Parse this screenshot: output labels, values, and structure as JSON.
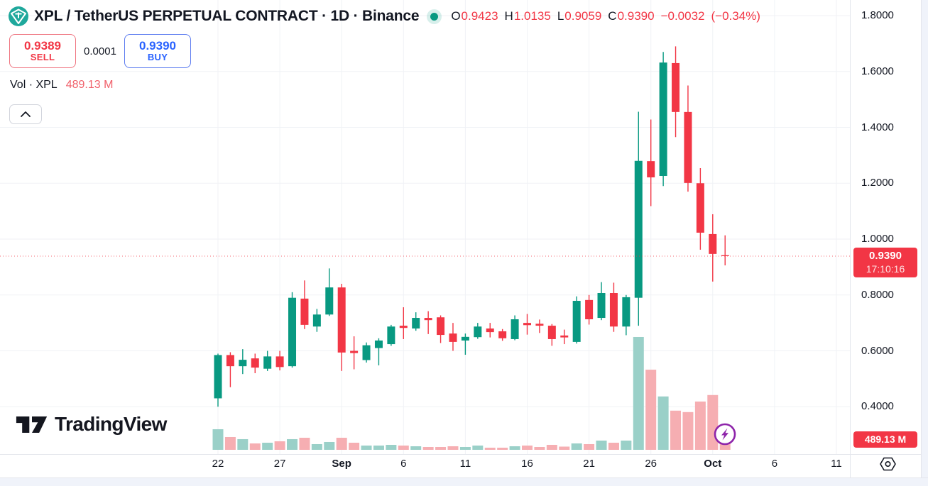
{
  "colors": {
    "up": "#089981",
    "down": "#f23645",
    "volume_up": "#9ad0c8",
    "volume_down": "#f6aeb2",
    "buy_blue": "#2962ff",
    "sell_red": "#f23645",
    "grid": "#f0f2f6",
    "axis_text": "#131722",
    "tag_red": "#f23645",
    "lightning_purple": "#8e24aa"
  },
  "header": {
    "title": "XPL / TetherUS PERPETUAL CONTRACT · 1D · Binance",
    "ohlc": {
      "o_label": "O",
      "o": "0.9423",
      "h_label": "H",
      "h": "1.0135",
      "l_label": "L",
      "l": "0.9059",
      "c_label": "C",
      "c": "0.9390",
      "change": "−0.0032",
      "change_pct": "(−0.34%)"
    }
  },
  "order_panel": {
    "sell_price": "0.9389",
    "sell_label": "SELL",
    "spread": "0.0001",
    "buy_price": "0.9390",
    "buy_label": "BUY"
  },
  "volume_row": {
    "label": "Vol · XPL",
    "value": "489.13 M"
  },
  "watermark": {
    "brand": "TradingView"
  },
  "price_axis": {
    "last_price_label": "0.9390",
    "countdown": "17:10:16",
    "volume_label": "489.13 M"
  },
  "chart_data": {
    "type": "candlestick_with_volume",
    "symbol": "XPL / TetherUS",
    "contract": "PERPETUAL CONTRACT",
    "interval": "1D",
    "exchange": "Binance",
    "ylim_visible": [
      0.23,
      1.86
    ],
    "price_ticks": [
      1.8,
      1.6,
      1.4,
      1.2,
      1.0,
      0.8,
      0.6,
      0.4
    ],
    "grid": true,
    "last_price": 0.939,
    "last_direction": "down",
    "time_labels": [
      {
        "text": "22",
        "day": 0
      },
      {
        "text": "27",
        "day": 5
      },
      {
        "text": "Sep",
        "day": 10,
        "bold": true
      },
      {
        "text": "6",
        "day": 15
      },
      {
        "text": "11",
        "day": 20
      },
      {
        "text": "16",
        "day": 25
      },
      {
        "text": "21",
        "day": 30
      },
      {
        "text": "26",
        "day": 35
      },
      {
        "text": "Oct",
        "day": 40,
        "bold": true
      },
      {
        "text": "6",
        "day": 45
      },
      {
        "text": "11",
        "day": 50
      }
    ],
    "columns": [
      "date",
      "open",
      "high",
      "low",
      "close",
      "volume_millions"
    ],
    "candles": [
      [
        "Aug 22",
        0.43,
        0.59,
        0.4,
        0.585,
        1015
      ],
      [
        "Aug 23",
        0.585,
        0.595,
        0.47,
        0.545,
        630
      ],
      [
        "Aug 24",
        0.545,
        0.606,
        0.517,
        0.568,
        525
      ],
      [
        "Aug 25",
        0.573,
        0.59,
        0.52,
        0.54,
        315
      ],
      [
        "Aug 26",
        0.536,
        0.6,
        0.528,
        0.58,
        350
      ],
      [
        "Aug 27",
        0.58,
        0.6,
        0.53,
        0.542,
        420
      ],
      [
        "Aug 28",
        0.545,
        0.81,
        0.54,
        0.79,
        525
      ],
      [
        "Aug 29",
        0.787,
        0.852,
        0.678,
        0.693,
        595
      ],
      [
        "Aug 30",
        0.687,
        0.75,
        0.668,
        0.73,
        280
      ],
      [
        "Aug 31",
        0.73,
        0.895,
        0.725,
        0.827,
        385
      ],
      [
        "Sep 1",
        0.827,
        0.84,
        0.528,
        0.594,
        595
      ],
      [
        "Sep 2",
        0.6,
        0.652,
        0.534,
        0.592,
        350
      ],
      [
        "Sep 3",
        0.567,
        0.63,
        0.558,
        0.62,
        210
      ],
      [
        "Sep 4",
        0.61,
        0.645,
        0.548,
        0.637,
        210
      ],
      [
        "Sep 5",
        0.624,
        0.693,
        0.618,
        0.687,
        245
      ],
      [
        "Sep 6",
        0.69,
        0.756,
        0.642,
        0.682,
        210
      ],
      [
        "Sep 7",
        0.68,
        0.738,
        0.672,
        0.718,
        175
      ],
      [
        "Sep 8",
        0.718,
        0.742,
        0.66,
        0.71,
        140
      ],
      [
        "Sep 9",
        0.72,
        0.727,
        0.628,
        0.657,
        140
      ],
      [
        "Sep 10",
        0.662,
        0.7,
        0.6,
        0.632,
        175
      ],
      [
        "Sep 11",
        0.637,
        0.662,
        0.586,
        0.65,
        140
      ],
      [
        "Sep 12",
        0.649,
        0.7,
        0.643,
        0.687,
        210
      ],
      [
        "Sep 13",
        0.68,
        0.7,
        0.648,
        0.667,
        105
      ],
      [
        "Sep 14",
        0.67,
        0.678,
        0.636,
        0.645,
        105
      ],
      [
        "Sep 15",
        0.642,
        0.727,
        0.638,
        0.713,
        175
      ],
      [
        "Sep 16",
        0.7,
        0.732,
        0.658,
        0.692,
        210
      ],
      [
        "Sep 17",
        0.697,
        0.712,
        0.664,
        0.69,
        140
      ],
      [
        "Sep 18",
        0.69,
        0.696,
        0.618,
        0.642,
        245
      ],
      [
        "Sep 19",
        0.655,
        0.676,
        0.624,
        0.648,
        158
      ],
      [
        "Sep 20",
        0.632,
        0.795,
        0.626,
        0.779,
        315
      ],
      [
        "Sep 21",
        0.782,
        0.8,
        0.694,
        0.713,
        280
      ],
      [
        "Sep 22",
        0.718,
        0.846,
        0.71,
        0.807,
        455
      ],
      [
        "Sep 23",
        0.807,
        0.844,
        0.668,
        0.687,
        350
      ],
      [
        "Sep 24",
        0.687,
        0.8,
        0.656,
        0.792,
        455
      ],
      [
        "Sep 25",
        0.79,
        1.456,
        0.69,
        1.28,
        5560
      ],
      [
        "Sep 26",
        1.279,
        1.428,
        1.118,
        1.221,
        3950
      ],
      [
        "Sep 27",
        1.226,
        1.67,
        1.19,
        1.632,
        2630
      ],
      [
        "Sep 28",
        1.63,
        1.69,
        1.365,
        1.455,
        1930
      ],
      [
        "Sep 29",
        1.455,
        1.55,
        1.17,
        1.201,
        1860
      ],
      [
        "Sep 30",
        1.2,
        1.254,
        0.962,
        1.023,
        2380
      ],
      [
        "Oct 1",
        1.018,
        1.089,
        0.848,
        0.947,
        2700
      ],
      [
        "Oct 2",
        0.9423,
        1.0135,
        0.9059,
        0.939,
        489.13
      ]
    ]
  }
}
